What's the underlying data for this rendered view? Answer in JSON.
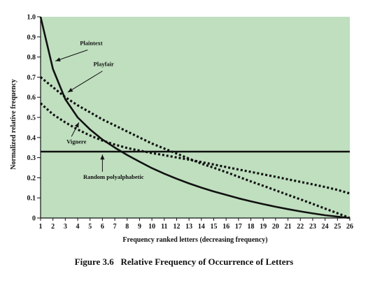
{
  "chart_data": {
    "type": "line",
    "caption": "Figure 3.6   Relative Frequency of Occurrence of Letters",
    "xlabel": "Frequency ranked letters (decreasing frequency)",
    "ylabel": "Normalized relative frequency",
    "xlim": [
      1,
      26
    ],
    "ylim": [
      0,
      1.0
    ],
    "x_ticks": [
      1,
      2,
      3,
      4,
      5,
      6,
      7,
      8,
      9,
      10,
      11,
      12,
      13,
      14,
      15,
      16,
      17,
      18,
      19,
      20,
      21,
      22,
      23,
      24,
      25,
      26
    ],
    "x_tick_labels": [
      "1",
      "2",
      "3",
      "4",
      "5",
      "6",
      "7",
      "8",
      "9",
      "10",
      "11",
      "12",
      "13",
      "14",
      "15",
      "16",
      "17",
      "18",
      "19",
      "20",
      "21",
      "22",
      "23",
      "24",
      "25",
      "26"
    ],
    "y_ticks": [
      0,
      0.1,
      0.2,
      0.3,
      0.4,
      0.5,
      0.6,
      0.7,
      0.8,
      0.9,
      1.0
    ],
    "y_tick_labels": [
      "0",
      "0.1",
      "0.2",
      "0.3",
      "0.4",
      "0.5",
      "0.6",
      "0.7",
      "0.8",
      "0.9",
      "1.0"
    ],
    "grid": false,
    "plot_background": "#bfdfbf",
    "line_color": "#111111",
    "x": [
      1,
      2,
      3,
      4,
      5,
      6,
      7,
      8,
      9,
      10,
      11,
      12,
      13,
      14,
      15,
      16,
      17,
      18,
      19,
      20,
      21,
      22,
      23,
      24,
      25,
      26
    ],
    "series": [
      {
        "name": "Plaintext",
        "style": "solid",
        "values": [
          1.0,
          0.74,
          0.59,
          0.5,
          0.44,
          0.39,
          0.35,
          0.313,
          0.28,
          0.248,
          0.22,
          0.195,
          0.172,
          0.151,
          0.132,
          0.115,
          0.098,
          0.083,
          0.069,
          0.056,
          0.044,
          0.033,
          0.023,
          0.014,
          0.007,
          0.0
        ]
      },
      {
        "name": "Playfair",
        "style": "dotted",
        "values": [
          0.7,
          0.65,
          0.6,
          0.56,
          0.525,
          0.49,
          0.46,
          0.43,
          0.4,
          0.37,
          0.345,
          0.32,
          0.295,
          0.27,
          0.25,
          0.228,
          0.205,
          0.182,
          0.16,
          0.138,
          0.115,
          0.093,
          0.07,
          0.047,
          0.024,
          0.0
        ]
      },
      {
        "name": "Vignere",
        "style": "dotted",
        "values": [
          0.57,
          0.515,
          0.475,
          0.44,
          0.41,
          0.385,
          0.365,
          0.348,
          0.335,
          0.323,
          0.312,
          0.301,
          0.29,
          0.278,
          0.266,
          0.253,
          0.241,
          0.229,
          0.217,
          0.205,
          0.192,
          0.18,
          0.167,
          0.154,
          0.14,
          0.122
        ]
      },
      {
        "name": "Random polyalphabetic",
        "style": "solid",
        "values": [
          0.33,
          0.33,
          0.33,
          0.33,
          0.33,
          0.33,
          0.33,
          0.33,
          0.33,
          0.33,
          0.33,
          0.33,
          0.33,
          0.33,
          0.33,
          0.33,
          0.33,
          0.33,
          0.33,
          0.33,
          0.33,
          0.33,
          0.33,
          0.33,
          0.33,
          0.33
        ]
      }
    ],
    "annotations": [
      {
        "id": "plaintext",
        "text": "Plaintext",
        "text_x": 5.1,
        "text_y": 0.86,
        "arrow_from": [
          4.8,
          0.835
        ],
        "arrow_to": [
          2.2,
          0.78
        ]
      },
      {
        "id": "playfair",
        "text": "Playfair",
        "text_x": 6.1,
        "text_y": 0.755,
        "arrow_from": [
          6.0,
          0.73
        ],
        "arrow_to": [
          3.2,
          0.625
        ]
      },
      {
        "id": "vignere",
        "text": "Vignere",
        "text_x": 3.9,
        "text_y": 0.37,
        "arrow_from": [
          3.5,
          0.405
        ],
        "arrow_to": [
          4.1,
          0.475
        ]
      },
      {
        "id": "random",
        "text": "Random polyalphabetic",
        "text_x": 6.9,
        "text_y": 0.195,
        "arrow_from": [
          6.0,
          0.23
        ],
        "arrow_to": [
          6.0,
          0.315
        ]
      }
    ]
  }
}
